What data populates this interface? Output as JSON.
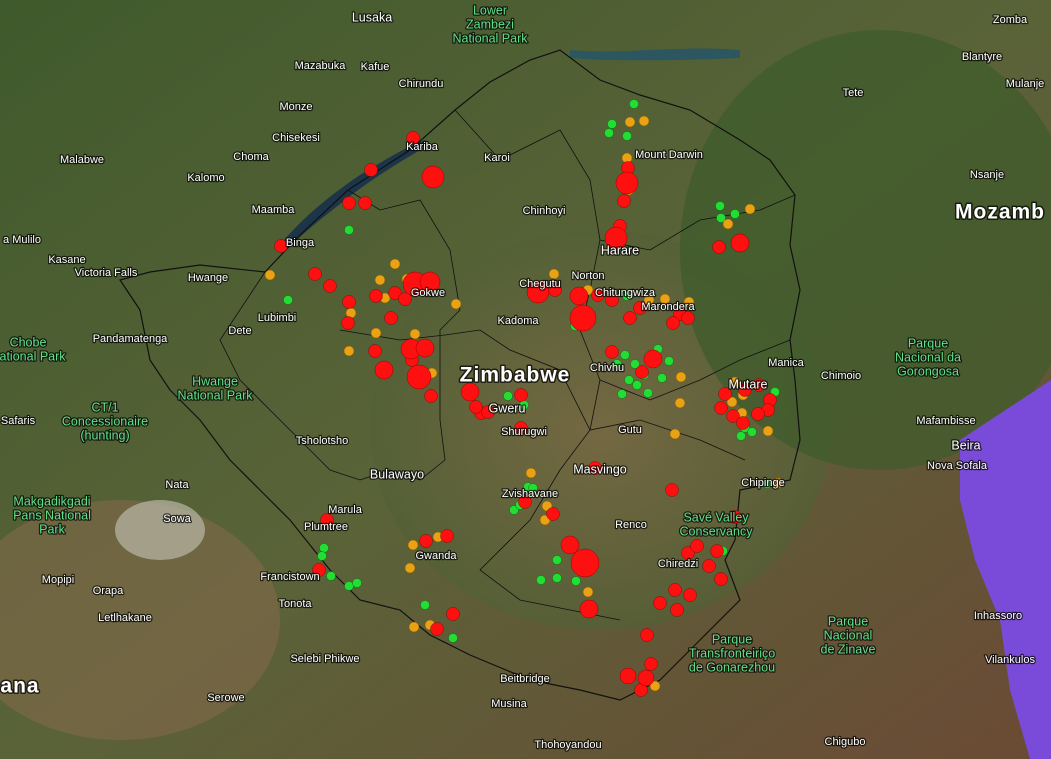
{
  "map": {
    "countries": [
      "Zimbabwe",
      "Mozamb",
      "ana"
    ],
    "places": [
      "Lusaka",
      "Zomba",
      "Blantyre",
      "Mulanje",
      "Tete",
      "Nsanje",
      "Mazabuka",
      "Kafue",
      "Chirundu",
      "Monze",
      "Chisekesi",
      "Choma",
      "Kalomo",
      "Malabwe",
      "Maamba",
      "Binga",
      "a Mulilo",
      "Kasane",
      "Victoria Falls",
      "Hwange",
      "Dete",
      "Lubimbi",
      "Pandamatenga",
      "Safaris",
      "Tsholotsho",
      "Bulawayo",
      "Nata",
      "Sowa",
      "Marula",
      "Plumtree",
      "Gwanda",
      "Francistown",
      "Mopipi",
      "Orapa",
      "Tonota",
      "Letlhakane",
      "Selebi Phikwe",
      "Serowe",
      "Beitbridge",
      "Musina",
      "Thohoyandou",
      "Kariba",
      "Karoi",
      "Chinhoyi",
      "Kadoma",
      "Norton",
      "Chegutu",
      "Harare",
      "Chitungwiza",
      "Marondera",
      "Mount Darwin",
      "Mutare",
      "Manica",
      "Chimoio",
      "Chivhu",
      "Gweru",
      "Shurugwi",
      "Gutu",
      "Masvingo",
      "Zvishavane",
      "Renco",
      "Chiredzi",
      "Chipinge",
      "Mafambisse",
      "Beira",
      "Nova Sofala",
      "Inhassoro",
      "Vilankulos",
      "Chigubo",
      "Gokwe"
    ],
    "parks": [
      [
        "Lower",
        "Zambezi",
        "National Park"
      ],
      [
        "Chobe",
        "National Park"
      ],
      [
        "Hwange",
        "National Park"
      ],
      [
        "CT/1",
        "Concessionaire",
        "(hunting)"
      ],
      [
        "Makgadikgadi",
        "Pans National",
        "Park"
      ],
      [
        "Savé Valley",
        "Conservancy"
      ],
      [
        "Parque",
        "Transfronteiriço",
        "de Gonarezhou"
      ],
      [
        "Parque",
        "Nacional",
        "de Zinave"
      ],
      [
        "Parque",
        "Nacional da",
        "Gorongosa"
      ]
    ]
  }
}
